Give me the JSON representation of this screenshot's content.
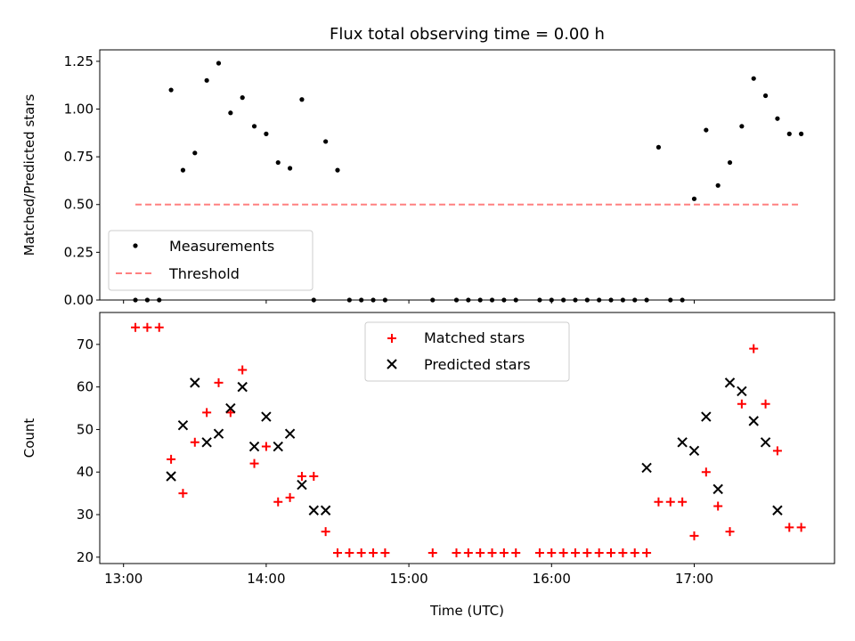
{
  "chart_data": [
    {
      "type": "scatter",
      "title": "Flux total observing time = 0.00 h",
      "ylabel": "Matched/Predicted stars",
      "xlim": [
        "12:50",
        "17:59"
      ],
      "ylim": [
        0,
        1.31
      ],
      "yticks": [
        "0.00",
        "0.25",
        "0.50",
        "0.75",
        "1.00",
        "1.25"
      ],
      "ytick_values": [
        0,
        0.25,
        0.5,
        0.75,
        1.0,
        1.25
      ],
      "xticks_visible": false,
      "legend": {
        "placement": "lower-left",
        "entries": [
          "Measurements",
          "Threshold"
        ]
      },
      "series": [
        {
          "name": "Measurements",
          "style": "dot",
          "color": "#000000",
          "x": [
            "13:05",
            "13:10",
            "13:15",
            "13:20",
            "13:25",
            "13:30",
            "13:35",
            "13:40",
            "13:45",
            "13:50",
            "13:55",
            "14:00",
            "14:05",
            "14:10",
            "14:15",
            "14:20",
            "14:25",
            "14:30",
            "14:35",
            "14:40",
            "14:45",
            "14:50",
            "15:10",
            "15:20",
            "15:25",
            "15:30",
            "15:35",
            "15:40",
            "15:45",
            "15:55",
            "16:00",
            "16:05",
            "16:10",
            "16:15",
            "16:20",
            "16:25",
            "16:30",
            "16:35",
            "16:40",
            "16:45",
            "16:50",
            "16:55",
            "17:00",
            "17:05",
            "17:10",
            "17:15",
            "17:20",
            "17:25",
            "17:30",
            "17:35",
            "17:40",
            "17:45"
          ],
          "y": [
            0.0,
            0.0,
            0.0,
            1.1,
            0.68,
            0.77,
            1.15,
            1.24,
            0.98,
            1.06,
            0.91,
            0.87,
            0.72,
            0.69,
            1.05,
            0.0,
            0.83,
            0.68,
            0.0,
            0.0,
            0.0,
            0.0,
            0.0,
            0.0,
            0.0,
            0.0,
            0.0,
            0.0,
            0.0,
            0.0,
            0.0,
            0.0,
            0.0,
            0.0,
            0.0,
            0.0,
            0.0,
            0.0,
            0.0,
            0.8,
            0.0,
            0.0,
            0.53,
            0.89,
            0.6,
            0.72,
            0.91,
            1.16,
            1.07,
            0.95,
            0.87,
            0.87
          ]
        },
        {
          "name": "Threshold",
          "style": "dashed-line",
          "color": "#ff8080",
          "x": [
            "13:05",
            "17:45"
          ],
          "y": [
            0.5,
            0.5
          ]
        }
      ]
    },
    {
      "type": "scatter",
      "title": "",
      "xlabel": "Time (UTC)",
      "ylabel": "Count",
      "xlim": [
        "12:50",
        "17:59"
      ],
      "ylim": [
        18.5,
        77.5
      ],
      "xticks": [
        "13:00",
        "14:00",
        "15:00",
        "16:00",
        "17:00"
      ],
      "yticks": [
        "20",
        "30",
        "40",
        "50",
        "60",
        "70"
      ],
      "ytick_values": [
        20,
        30,
        40,
        50,
        60,
        70
      ],
      "legend": {
        "placement": "top-center",
        "entries": [
          "Matched stars",
          "Predicted stars"
        ]
      },
      "series": [
        {
          "name": "Matched stars",
          "marker": "plus",
          "color": "#ff0000",
          "x": [
            "13:05",
            "13:10",
            "13:15",
            "13:20",
            "13:25",
            "13:30",
            "13:35",
            "13:40",
            "13:45",
            "13:50",
            "13:55",
            "14:00",
            "14:05",
            "14:10",
            "14:15",
            "14:20",
            "14:25",
            "14:30",
            "14:35",
            "14:40",
            "14:45",
            "14:50",
            "15:10",
            "15:20",
            "15:25",
            "15:30",
            "15:35",
            "15:40",
            "15:45",
            "15:55",
            "16:00",
            "16:05",
            "16:10",
            "16:15",
            "16:20",
            "16:25",
            "16:30",
            "16:35",
            "16:40",
            "16:45",
            "16:50",
            "16:55",
            "17:00",
            "17:05",
            "17:10",
            "17:15",
            "17:20",
            "17:25",
            "17:30",
            "17:35",
            "17:40",
            "17:45"
          ],
          "y": [
            74,
            74,
            74,
            43,
            35,
            47,
            54,
            61,
            54,
            64,
            42,
            46,
            33,
            34,
            39,
            39,
            26,
            21,
            21,
            21,
            21,
            21,
            21,
            21,
            21,
            21,
            21,
            21,
            21,
            21,
            21,
            21,
            21,
            21,
            21,
            21,
            21,
            21,
            21,
            33,
            33,
            33,
            25,
            40,
            32,
            26,
            56,
            69,
            56,
            45,
            27,
            27
          ]
        },
        {
          "name": "Predicted stars",
          "marker": "x",
          "color": "#000000",
          "x": [
            "13:20",
            "13:25",
            "13:30",
            "13:35",
            "13:40",
            "13:45",
            "13:50",
            "13:55",
            "14:00",
            "14:05",
            "14:10",
            "14:15",
            "14:20",
            "14:25",
            "16:40",
            "16:55",
            "17:00",
            "17:05",
            "17:10",
            "17:15",
            "17:20",
            "17:25",
            "17:30",
            "17:35"
          ],
          "y": [
            39,
            51,
            61,
            47,
            49,
            55,
            60,
            46,
            53,
            46,
            49,
            37,
            31,
            31,
            41,
            47,
            45,
            53,
            36,
            61,
            59,
            52,
            47,
            31
          ]
        }
      ]
    }
  ]
}
